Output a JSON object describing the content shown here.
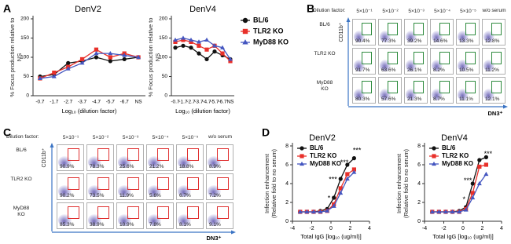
{
  "panel_labels": [
    "A",
    "B",
    "C",
    "D"
  ],
  "chart_data": [
    {
      "type": "line",
      "title": "DenV2",
      "ylabel": "% Focus production relative to NS",
      "xlabel": "Log₁₀ (dilution factor)",
      "categories": [
        "-0.7",
        "-1.7",
        "-2.7",
        "-3.7",
        "-4.7",
        "-5.7",
        "-6.7",
        "NS"
      ],
      "ylim": [
        0,
        200
      ],
      "yticks": [
        0,
        50,
        100,
        150,
        200
      ],
      "series": [
        {
          "name": "BL/6",
          "color": "#111111",
          "marker": "circle",
          "values": [
            50,
            55,
            85,
            90,
            100,
            90,
            95,
            100
          ]
        },
        {
          "name": "TLR2 KO",
          "color": "#e8302a",
          "marker": "square",
          "values": [
            45,
            60,
            75,
            95,
            120,
            100,
            110,
            100
          ]
        },
        {
          "name": "MyD88 KO",
          "color": "#4456c0",
          "marker": "triangle",
          "values": [
            45,
            50,
            70,
            85,
            110,
            110,
            105,
            100
          ]
        }
      ]
    },
    {
      "type": "line",
      "title": "DenV4",
      "ylabel": "% Focus production relative to NS",
      "xlabel": "Log₁₀ (dilution factor)",
      "categories": [
        "-0.7",
        "-1.7",
        "-2.7",
        "-3.7",
        "-4.7",
        "-5.7",
        "-6.7",
        "NS"
      ],
      "ylim": [
        0,
        200
      ],
      "yticks": [
        0,
        50,
        100,
        150,
        200
      ],
      "legend": "outside right",
      "series": [
        {
          "name": "BL/6",
          "color": "#111111",
          "marker": "circle",
          "values": [
            125,
            130,
            125,
            110,
            95,
            115,
            105,
            95
          ]
        },
        {
          "name": "TLR2 KO",
          "color": "#e8302a",
          "marker": "square",
          "values": [
            140,
            145,
            140,
            130,
            120,
            130,
            110,
            90
          ]
        },
        {
          "name": "MyD88 KO",
          "color": "#4456c0",
          "marker": "triangle",
          "values": [
            145,
            150,
            145,
            140,
            145,
            130,
            125,
            95
          ]
        }
      ]
    },
    {
      "type": "line",
      "title": "DenV2",
      "ylabel": "Infection enhancement (Relative fold to no serum)",
      "xlabel": "Total IgG [log₁₀ (ug/ml)]",
      "x": [
        -3.2,
        -2.5,
        -1.8,
        -1.1,
        -0.4,
        0.3,
        1.0,
        1.7,
        2.4
      ],
      "xlim": [
        -4,
        4
      ],
      "xticks": [
        -4,
        -2,
        0,
        2,
        4
      ],
      "ylim": [
        0,
        8
      ],
      "yticks": [
        0,
        2,
        4,
        6,
        8
      ],
      "legend": "upper left",
      "annotations": [
        "*",
        "***",
        "***",
        "***"
      ],
      "series": [
        {
          "name": "BL/6",
          "color": "#111111",
          "marker": "circle",
          "values": [
            1,
            1,
            1,
            1.1,
            1.3,
            2.5,
            4.5,
            6,
            6.7
          ]
        },
        {
          "name": "TLR2 KO",
          "color": "#e8302a",
          "marker": "square",
          "values": [
            1,
            1,
            1,
            1,
            1.1,
            1.8,
            3.5,
            5,
            5.5
          ]
        },
        {
          "name": "MyD88 KO",
          "color": "#4456c0",
          "marker": "triangle",
          "values": [
            1,
            1,
            1,
            1,
            1.1,
            1.6,
            3,
            4.5,
            5.2
          ]
        }
      ]
    },
    {
      "type": "line",
      "title": "DenV4",
      "ylabel": "Infection enhancement (Relative fold to no serum)",
      "xlabel": "Total IgG [log₁₀ (ug/ml)]",
      "x": [
        -3.2,
        -2.5,
        -1.8,
        -1.1,
        -0.4,
        0.3,
        1.0,
        1.7,
        2.4
      ],
      "xlim": [
        -4,
        4
      ],
      "xticks": [
        -4,
        -2,
        0,
        2,
        4
      ],
      "ylim": [
        0,
        8
      ],
      "yticks": [
        0,
        2,
        4,
        6,
        8
      ],
      "legend": "upper left",
      "annotations": [
        "*",
        "***",
        "***"
      ],
      "series": [
        {
          "name": "BL/6",
          "color": "#111111",
          "marker": "circle",
          "values": [
            1,
            1,
            1,
            1,
            1.1,
            1.5,
            4,
            6.5,
            6.8
          ]
        },
        {
          "name": "TLR2 KO",
          "color": "#e8302a",
          "marker": "square",
          "values": [
            1,
            1,
            1,
            1,
            1,
            1.3,
            3,
            5.8,
            6
          ]
        },
        {
          "name": "MyD88 KO",
          "color": "#4456c0",
          "marker": "triangle",
          "values": [
            1,
            1,
            1,
            1,
            1,
            1.2,
            2.5,
            4,
            5
          ]
        }
      ]
    }
  ],
  "flow_panels": [
    {
      "dilution_label": "Dilution factor:",
      "columns": [
        "5×10⁻¹",
        "5×10⁻²",
        "5×10⁻³",
        "5×10⁻⁴",
        "5×10⁻⁵",
        "w/o serum"
      ],
      "y_axis": "CD11b⁺",
      "x_axis": "DN3⁺",
      "gate_color": "#2e8b3e",
      "rows": [
        {
          "label": "BL/6",
          "percents": [
            "90.4%",
            "77.3%",
            "39.2%",
            "14.6%",
            "13.3%",
            "12.8%"
          ]
        },
        {
          "label": "TLR2 KO",
          "percents": [
            "91.7%",
            "63.6%",
            "26.1%",
            "8.2%",
            "10.5%",
            "11.2%"
          ]
        },
        {
          "label": "MyD88 KO",
          "percents": [
            "80.3%",
            "57.6%",
            "21.3%",
            "8.7%",
            "11.1%",
            "12.1%"
          ]
        }
      ]
    },
    {
      "dilution_label": "Dilution factor:",
      "columns": [
        "5×10⁻¹",
        "5×10⁻²",
        "5×10⁻³",
        "5×10⁻⁴",
        "5×10⁻⁵",
        "w/o serum"
      ],
      "y_axis": "CD11b⁺",
      "x_axis": "DN3⁺",
      "gate_color": "#e03030",
      "rows": [
        {
          "label": "BL/6",
          "percents": [
            "90.9%",
            "78.3%",
            "25.6%",
            "21.2%",
            "18.8%",
            "8.9%"
          ]
        },
        {
          "label": "TLR2 KO",
          "percents": [
            "90.2%",
            "73.5%",
            "11.9%",
            "5.6%",
            "6.7%",
            "7.2%"
          ]
        },
        {
          "label": "MyD88 KO",
          "percents": [
            "85.3%",
            "38.9%",
            "10.9%",
            "7.8%",
            "8.1%",
            "9.1%"
          ]
        }
      ]
    }
  ]
}
